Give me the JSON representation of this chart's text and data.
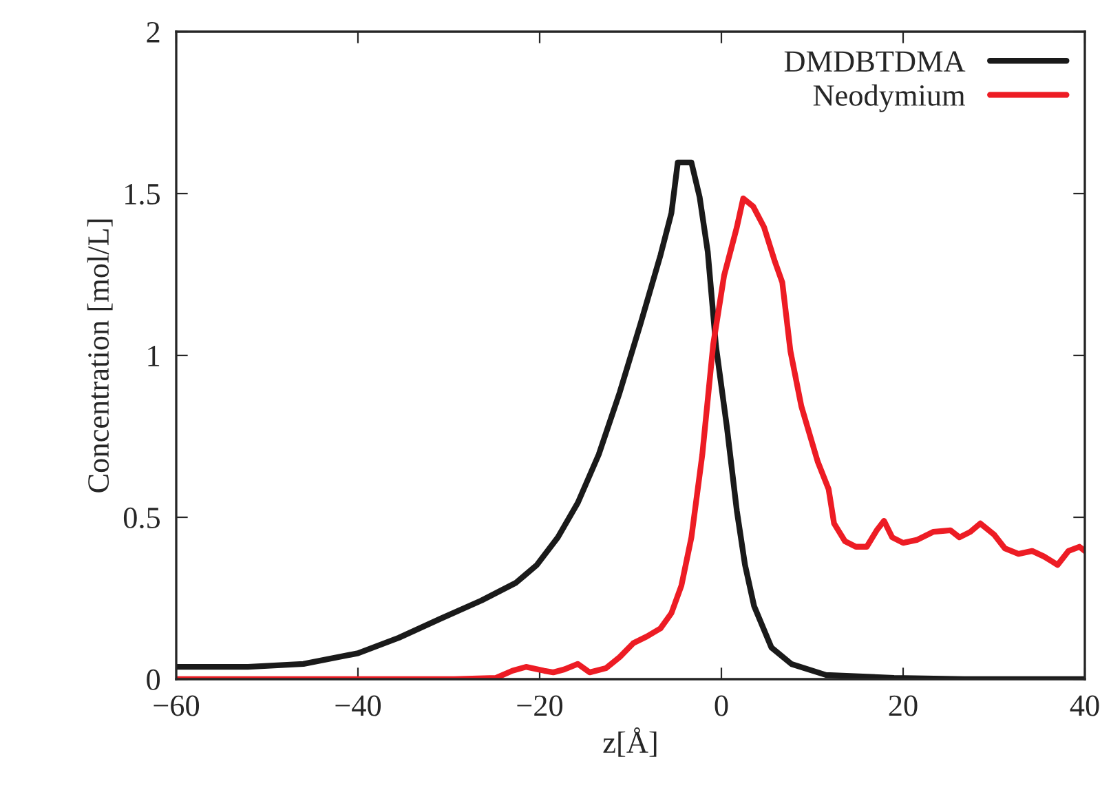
{
  "chart_data": {
    "type": "line",
    "xlabel": "z[Å]",
    "ylabel": "Concentration [mol/L]",
    "xlim": [
      -60,
      40
    ],
    "xticks": [
      {
        "value": -60,
        "label": "−60"
      },
      {
        "value": -40,
        "label": "−40"
      },
      {
        "value": -20,
        "label": "−20"
      },
      0,
      20,
      40
    ],
    "ylim": [
      0,
      2
    ],
    "yticks": [
      0,
      0.5,
      1,
      1.5,
      2
    ],
    "grid": false,
    "legend": "top right",
    "marker": "none",
    "line_style": "solid",
    "series": [
      {
        "name": "DMDBTDMA",
        "color": "#1a1a1a",
        "x": [
          -60,
          -52.1,
          -46,
          -40,
          -35.5,
          -30.9,
          -26.4,
          -22.6,
          -20.3,
          -18,
          -15.8,
          -13.5,
          -11.2,
          -8.9,
          -6.7,
          -5.5,
          -4.8,
          -3.3,
          -2.4,
          -1.5,
          -0.6,
          0.6,
          1.7,
          2.6,
          3.6,
          5.5,
          7.7,
          11.5,
          19,
          26.7,
          40
        ],
        "values": [
          0.038,
          0.038,
          0.047,
          0.08,
          0.128,
          0.187,
          0.243,
          0.298,
          0.353,
          0.438,
          0.545,
          0.694,
          0.885,
          1.098,
          1.31,
          1.44,
          1.596,
          1.596,
          1.49,
          1.32,
          1.03,
          0.78,
          0.52,
          0.353,
          0.226,
          0.098,
          0.047,
          0.013,
          0.004,
          0,
          0
        ]
      },
      {
        "name": "Neodymium",
        "color": "#ed1c24",
        "x": [
          -60,
          -29.4,
          -24.8,
          -23,
          -21.5,
          -19.5,
          -18.5,
          -17.3,
          -15.8,
          -14.5,
          -12.7,
          -11.2,
          -9.7,
          -8.2,
          -6.7,
          -5.5,
          -4.4,
          -3.3,
          -2.1,
          -0.9,
          0.3,
          1.7,
          2.4,
          3.5,
          4.7,
          5.9,
          6.7,
          7.6,
          8.8,
          10.6,
          11.8,
          12.4,
          13.6,
          14.8,
          16,
          17.1,
          17.9,
          18.8,
          20,
          21.5,
          23.3,
          25.2,
          26.2,
          27.4,
          28.5,
          30,
          31.2,
          32.7,
          34.2,
          35.5,
          37,
          38.2,
          39.4,
          40
        ],
        "values": [
          0,
          0,
          0.004,
          0.026,
          0.038,
          0.026,
          0.021,
          0.03,
          0.047,
          0.021,
          0.034,
          0.068,
          0.111,
          0.132,
          0.157,
          0.204,
          0.289,
          0.438,
          0.694,
          1.034,
          1.247,
          1.396,
          1.485,
          1.46,
          1.396,
          1.289,
          1.226,
          1.013,
          0.843,
          0.672,
          0.587,
          0.481,
          0.426,
          0.409,
          0.409,
          0.46,
          0.489,
          0.438,
          0.421,
          0.43,
          0.455,
          0.46,
          0.438,
          0.455,
          0.481,
          0.447,
          0.404,
          0.387,
          0.396,
          0.379,
          0.353,
          0.396,
          0.409,
          0.396
        ]
      }
    ]
  }
}
